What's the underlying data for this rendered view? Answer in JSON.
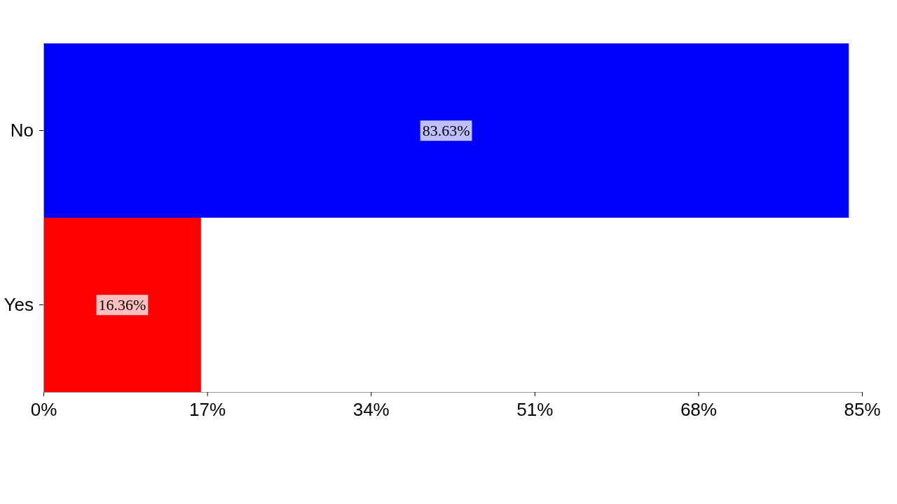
{
  "chart_data": {
    "type": "bar",
    "orientation": "horizontal",
    "categories": [
      "No",
      "Yes"
    ],
    "values": [
      83.63,
      16.36
    ],
    "colors": [
      "#0000ff",
      "#ff0000"
    ],
    "value_labels": [
      "83.63%",
      "16.36%"
    ],
    "xlim": [
      0,
      85
    ],
    "xticks": [
      {
        "value": 0,
        "label": "0%"
      },
      {
        "value": 17,
        "label": "17%"
      },
      {
        "value": 34,
        "label": "34%"
      },
      {
        "value": 51,
        "label": "51%"
      },
      {
        "value": 68,
        "label": "68%"
      },
      {
        "value": 85,
        "label": "85%"
      }
    ],
    "grid": false
  }
}
